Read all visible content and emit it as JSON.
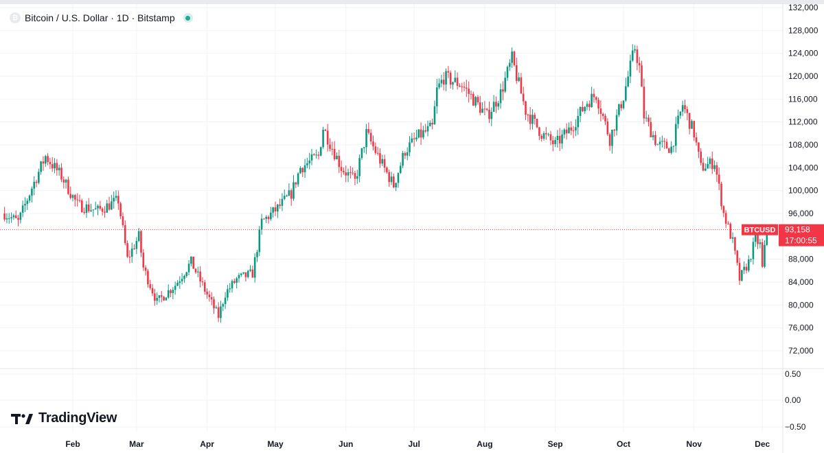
{
  "header": {
    "symbol_title": "Bitcoin / U.S. Dollar · 1D · Bitstamp",
    "symbol_logo_icon": "bitcoin-icon",
    "status_icon": "market-open-dot-icon"
  },
  "branding": {
    "logo_text": "TradingView",
    "logo_icon": "tradingview-mark-icon"
  },
  "colors": {
    "up": "#089981",
    "down": "#f23645",
    "last_price": "#f23645",
    "grid": "#f0f3fa"
  },
  "chart_data": {
    "type": "candlestick",
    "symbol": "BTCUSD",
    "title": "Bitcoin / U.S. Dollar · 1D · Bitstamp",
    "x_ticks": [
      "Feb",
      "Mar",
      "Apr",
      "May",
      "Jun",
      "Jul",
      "Aug",
      "Sep",
      "Oct",
      "Nov",
      "Dec"
    ],
    "y_ticks": [
      "132,000",
      "128,000",
      "124,000",
      "120,000",
      "116,000",
      "112,000",
      "108,000",
      "104,000",
      "100,000",
      "96,000",
      "88,000",
      "84,000",
      "80,000",
      "76,000",
      "72,000"
    ],
    "y_range": [
      70000,
      132000
    ],
    "last_price": {
      "label": "BTCUSD",
      "value": 93158,
      "value_text": "93,158",
      "countdown": "17:00:55"
    },
    "price_path": [
      [
        "2025-01-02",
        96000
      ],
      [
        "2025-01-08",
        94500
      ],
      [
        "2025-01-14",
        100500
      ],
      [
        "2025-01-20",
        106000
      ],
      [
        "2025-01-27",
        102500
      ],
      [
        "2025-02-03",
        97500
      ],
      [
        "2025-02-12",
        96500
      ],
      [
        "2025-02-21",
        98300
      ],
      [
        "2025-02-25",
        88000
      ],
      [
        "2025-03-02",
        92000
      ],
      [
        "2025-03-04",
        86500
      ],
      [
        "2025-03-10",
        80500
      ],
      [
        "2025-03-18",
        83500
      ],
      [
        "2025-03-25",
        87500
      ],
      [
        "2025-03-31",
        82600
      ],
      [
        "2025-04-06",
        78000
      ],
      [
        "2025-04-09",
        82000
      ],
      [
        "2025-04-14",
        84500
      ],
      [
        "2025-04-21",
        85500
      ],
      [
        "2025-04-25",
        94500
      ],
      [
        "2025-05-02",
        96900
      ],
      [
        "2025-05-08",
        99500
      ],
      [
        "2025-05-12",
        104000
      ],
      [
        "2025-05-20",
        106000
      ],
      [
        "2025-05-22",
        111000
      ],
      [
        "2025-05-30",
        104000
      ],
      [
        "2025-06-05",
        101600
      ],
      [
        "2025-06-10",
        110000
      ],
      [
        "2025-06-17",
        104500
      ],
      [
        "2025-06-22",
        100900
      ],
      [
        "2025-06-27",
        107000
      ],
      [
        "2025-07-03",
        109500
      ],
      [
        "2025-07-09",
        111000
      ],
      [
        "2025-07-11",
        117500
      ],
      [
        "2025-07-14",
        119800
      ],
      [
        "2025-07-22",
        118500
      ],
      [
        "2025-08-02",
        113000
      ],
      [
        "2025-08-08",
        117000
      ],
      [
        "2025-08-13",
        123000
      ],
      [
        "2025-08-19",
        114000
      ],
      [
        "2025-08-26",
        110000
      ],
      [
        "2025-09-01",
        108000
      ],
      [
        "2025-09-08",
        111000
      ],
      [
        "2025-09-15",
        115500
      ],
      [
        "2025-09-19",
        116800
      ],
      [
        "2025-09-25",
        109000
      ],
      [
        "2025-10-01",
        116500
      ],
      [
        "2025-10-06",
        125000
      ],
      [
        "2025-10-08",
        121500
      ],
      [
        "2025-10-10",
        113000
      ],
      [
        "2025-10-16",
        108000
      ],
      [
        "2025-10-22",
        107500
      ],
      [
        "2025-10-27",
        115000
      ],
      [
        "2025-11-01",
        110000
      ],
      [
        "2025-11-04",
        104000
      ],
      [
        "2025-11-10",
        105000
      ],
      [
        "2025-11-14",
        96000
      ],
      [
        "2025-11-18",
        91000
      ],
      [
        "2025-11-21",
        84500
      ],
      [
        "2025-11-25",
        87500
      ],
      [
        "2025-11-28",
        91500
      ],
      [
        "2025-11-30",
        90500
      ],
      [
        "2025-12-01",
        86300
      ],
      [
        "2025-12-03",
        93158
      ]
    ],
    "indicator_pane": {
      "y_ticks": [
        "0.50",
        "0.00",
        "−0.50"
      ],
      "y_range": [
        -0.6,
        0.6
      ]
    }
  }
}
